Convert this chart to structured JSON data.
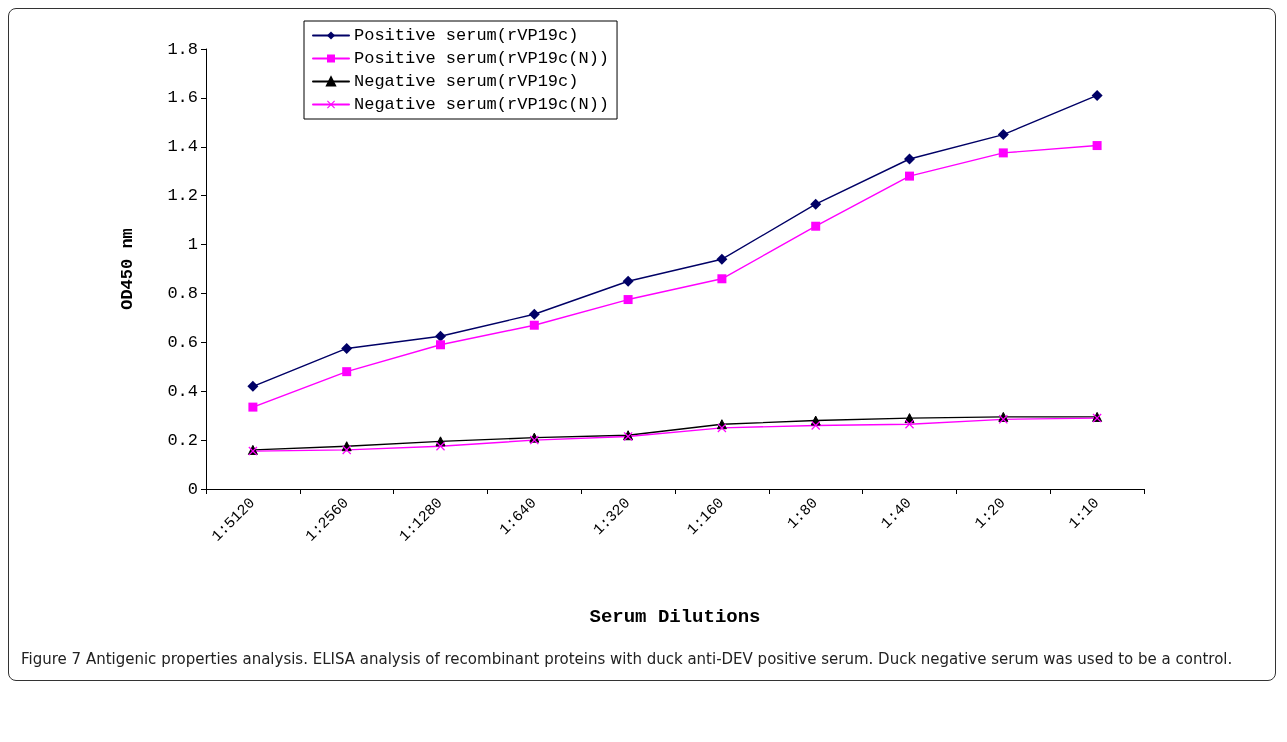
{
  "chart_data": {
    "type": "line",
    "annotations": [
      "Figure 7 Antigenic properties analysis. ELISA analysis of recombinant proteins with duck anti-DEV positive serum. Duck negative serum was used to be a control."
    ],
    "xlabel": "Serum Dilutions",
    "ylabel": "OD450 nm",
    "categories": [
      "1:5120",
      "1:2560",
      "1:1280",
      "1:640",
      "1:320",
      "1:160",
      "1:80",
      "1:40",
      "1:20",
      "1:10"
    ],
    "series": [
      {
        "name": "Positive serum(rVP19c)",
        "color": "#000066",
        "marker": "diamond",
        "values": [
          0.42,
          0.575,
          0.625,
          0.715,
          0.85,
          0.94,
          1.165,
          1.35,
          1.45,
          1.61
        ]
      },
      {
        "name": "Positive serum(rVP19c(N))",
        "color": "#ff00ff",
        "marker": "square",
        "values": [
          0.335,
          0.48,
          0.59,
          0.67,
          0.775,
          0.86,
          1.075,
          1.28,
          1.375,
          1.405
        ]
      },
      {
        "name": "Negative serum(rVP19c)",
        "color": "#000000",
        "marker": "triangle",
        "values": [
          0.16,
          0.175,
          0.195,
          0.21,
          0.22,
          0.265,
          0.28,
          0.29,
          0.295,
          0.295
        ]
      },
      {
        "name": "Negative serum(rVP19c(N))",
        "color": "#ff00ff",
        "marker": "cross",
        "values": [
          0.155,
          0.16,
          0.175,
          0.2,
          0.215,
          0.25,
          0.26,
          0.265,
          0.285,
          0.29
        ]
      }
    ],
    "ylim": [
      0,
      1.8
    ],
    "yticks": [
      0,
      0.2,
      0.4,
      0.6,
      0.8,
      1,
      1.2,
      1.4,
      1.6,
      1.8
    ],
    "grid": false,
    "legend": "top left",
    "line_style": "solid"
  }
}
